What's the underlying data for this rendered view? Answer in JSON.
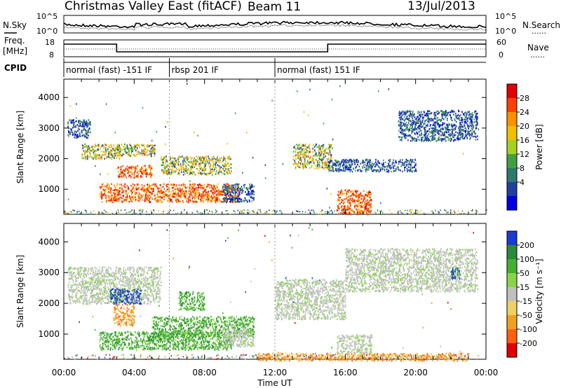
{
  "header": {
    "title": "Christmas Valley East (fitACF)",
    "beam": "Beam 11",
    "date": "13/Jul/2013"
  },
  "left_labels": {
    "nsky": "N.Sky",
    "freq": "Freq.",
    "freq_unit": "[MHz]",
    "cpid": "CPID"
  },
  "right_labels": {
    "nsearch": "N.Search",
    "nave": "Nave",
    "dots": "......"
  },
  "noise_axis": {
    "top": "10^5",
    "bottom": "10^0"
  },
  "freq_axis": {
    "ticks": [
      "18",
      "8"
    ],
    "right_ticks": [
      "60",
      "0"
    ]
  },
  "cpid": {
    "segments": [
      {
        "label": "normal (fast) -151 IF",
        "start_h": 0,
        "end_h": 6.0
      },
      {
        "label": "rbsp 201 IF",
        "start_h": 6.0,
        "end_h": 12.0
      },
      {
        "label": "normal (fast) 151 IF",
        "start_h": 12.0,
        "end_h": 24.0
      }
    ]
  },
  "x_axis": {
    "label": "Time UT",
    "ticks": [
      "00:00",
      "04:00",
      "08:00",
      "12:00",
      "16:00",
      "20:00",
      "00:00"
    ],
    "range_h": [
      0,
      24
    ]
  },
  "power_panel": {
    "ylabel": "Slant Range [km]",
    "yticks": [
      1000,
      2000,
      3000,
      4000
    ],
    "ylim": [
      180,
      4600
    ],
    "cbar_label": "Power [dB]",
    "cbar_ticks": [
      "28",
      "24",
      "20",
      "16",
      "12",
      "8",
      "4"
    ],
    "cbar_colors": [
      "#e00000",
      "#ff4000",
      "#ff9000",
      "#f0c000",
      "#a8d020",
      "#40a040",
      "#2e7a6e",
      "#2040a0",
      "#0000e0"
    ]
  },
  "velocity_panel": {
    "ylabel": "Slant Range [km]",
    "yticks": [
      1000,
      2000,
      3000,
      4000
    ],
    "ylim": [
      180,
      4600
    ],
    "cbar_label": "Velocity [m s⁻¹]",
    "cbar_ticks": [
      "200",
      "100",
      "50",
      "15",
      "-15",
      "-50",
      "-100",
      "-200"
    ],
    "cbar_colors": [
      "#1c3cd0",
      "#2a8a3a",
      "#44b030",
      "#88d448",
      "#c0c0c0",
      "#f0d060",
      "#f0a020",
      "#ff6010",
      "#e00000"
    ]
  },
  "chart_data": {
    "type": "heatmap",
    "x_range_h": [
      0,
      24
    ],
    "y_range_km": [
      180,
      4600
    ],
    "power_regions": [
      {
        "t0": 0.2,
        "t1": 1.5,
        "r0": 2700,
        "r1": 3300,
        "level": "low"
      },
      {
        "t0": 1.0,
        "t1": 3.2,
        "r0": 2000,
        "r1": 2500,
        "level": "mid"
      },
      {
        "t0": 3.0,
        "t1": 5.0,
        "r0": 1400,
        "r1": 1800,
        "level": "high"
      },
      {
        "t0": 3.0,
        "t1": 5.2,
        "r0": 2100,
        "r1": 2500,
        "level": "mid"
      },
      {
        "t0": 2.0,
        "t1": 10.0,
        "r0": 600,
        "r1": 1200,
        "level": "high"
      },
      {
        "t0": 5.5,
        "t1": 9.5,
        "r0": 1500,
        "r1": 2100,
        "level": "mid"
      },
      {
        "t0": 9.0,
        "t1": 10.8,
        "r0": 600,
        "r1": 1200,
        "level": "low"
      },
      {
        "t0": 13.0,
        "t1": 15.2,
        "r0": 1700,
        "r1": 2500,
        "level": "mid"
      },
      {
        "t0": 15.5,
        "t1": 17.5,
        "r0": 200,
        "r1": 1000,
        "level": "high"
      },
      {
        "t0": 15.0,
        "t1": 20.0,
        "r0": 1600,
        "r1": 2000,
        "level": "low"
      },
      {
        "t0": 19.0,
        "t1": 23.5,
        "r0": 2600,
        "r1": 3600,
        "level": "low"
      }
    ],
    "velocity_regions": [
      {
        "t0": 0.2,
        "t1": 5.5,
        "r0": 2000,
        "r1": 3200,
        "class": "gray"
      },
      {
        "t0": 2.8,
        "t1": 4.0,
        "r0": 1300,
        "r1": 2000,
        "class": "orange"
      },
      {
        "t0": 2.6,
        "t1": 4.4,
        "r0": 2000,
        "r1": 2500,
        "class": "blue"
      },
      {
        "t0": 2.0,
        "t1": 9.5,
        "r0": 500,
        "r1": 1100,
        "class": "green"
      },
      {
        "t0": 5.0,
        "t1": 10.8,
        "r0": 900,
        "r1": 1600,
        "class": "green"
      },
      {
        "t0": 6.5,
        "t1": 8.0,
        "r0": 1800,
        "r1": 2400,
        "class": "green"
      },
      {
        "t0": 9.0,
        "t1": 10.8,
        "r0": 600,
        "r1": 1200,
        "class": "gray"
      },
      {
        "t0": 12.0,
        "t1": 16.0,
        "r0": 1500,
        "r1": 2800,
        "class": "gray"
      },
      {
        "t0": 15.5,
        "t1": 17.5,
        "r0": 400,
        "r1": 1000,
        "class": "gray"
      },
      {
        "t0": 11.0,
        "t1": 23.0,
        "r0": 150,
        "r1": 400,
        "class": "orange"
      },
      {
        "t0": 16.0,
        "t1": 23.5,
        "r0": 2400,
        "r1": 3800,
        "class": "gray"
      },
      {
        "t0": 22.0,
        "t1": 22.5,
        "r0": 2800,
        "r1": 3200,
        "class": "blue"
      }
    ]
  }
}
